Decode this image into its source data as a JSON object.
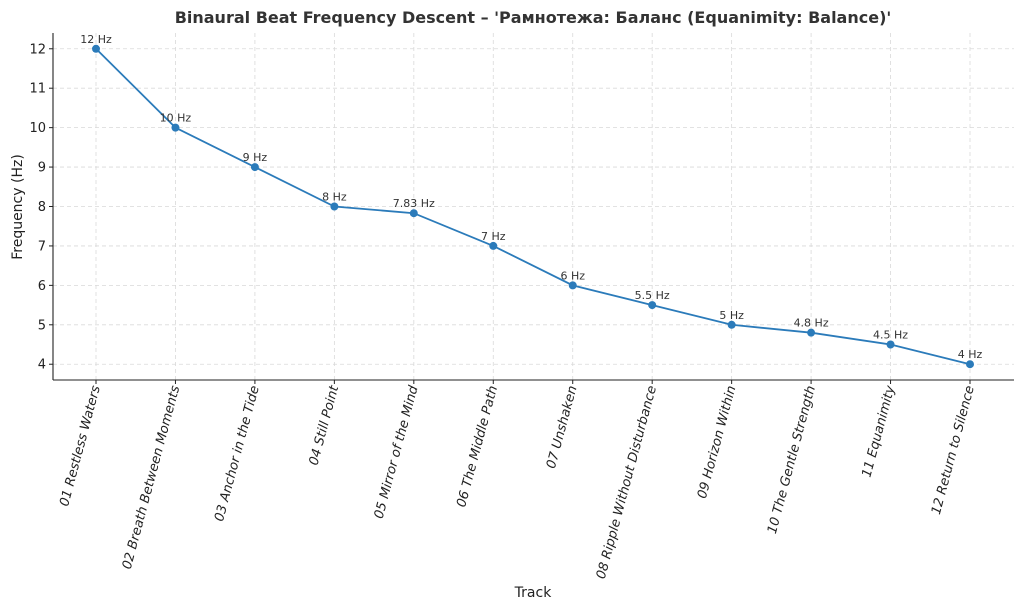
{
  "chart_data": {
    "type": "line",
    "title": "Binaural Beat Frequency Descent – 'Рамнотежа: Баланс (Equanimity: Balance)'",
    "xlabel": "Track",
    "ylabel": "Frequency (Hz)",
    "categories": [
      "01 Restless Waters",
      "02 Breath Between Moments",
      "03 Anchor in the Tide",
      "04 Still Point",
      "05 Mirror of the Mind",
      "06 The Middle Path",
      "07 Unshaken",
      "08 Ripple Without Disturbance",
      "09 Horizon Within",
      "10 The Gentle Strength",
      "11 Equanimity",
      "12 Return to Silence"
    ],
    "series": [
      {
        "values": [
          12,
          10,
          9,
          8,
          7.83,
          7,
          6,
          5.5,
          5,
          4.8,
          4.5,
          4
        ],
        "color": "#2b7bba"
      }
    ],
    "data_labels": [
      "12 Hz",
      "10 Hz",
      "9 Hz",
      "8 Hz",
      "7.83 Hz",
      "7 Hz",
      "6 Hz",
      "5.5 Hz",
      "5 Hz",
      "4.8 Hz",
      "4.5 Hz",
      "4 Hz"
    ],
    "ylim": [
      3.6,
      12.4
    ],
    "yticks": [
      4,
      5,
      6,
      7,
      8,
      9,
      10,
      11,
      12
    ],
    "grid": true,
    "category_label_rotation": "-75deg"
  }
}
